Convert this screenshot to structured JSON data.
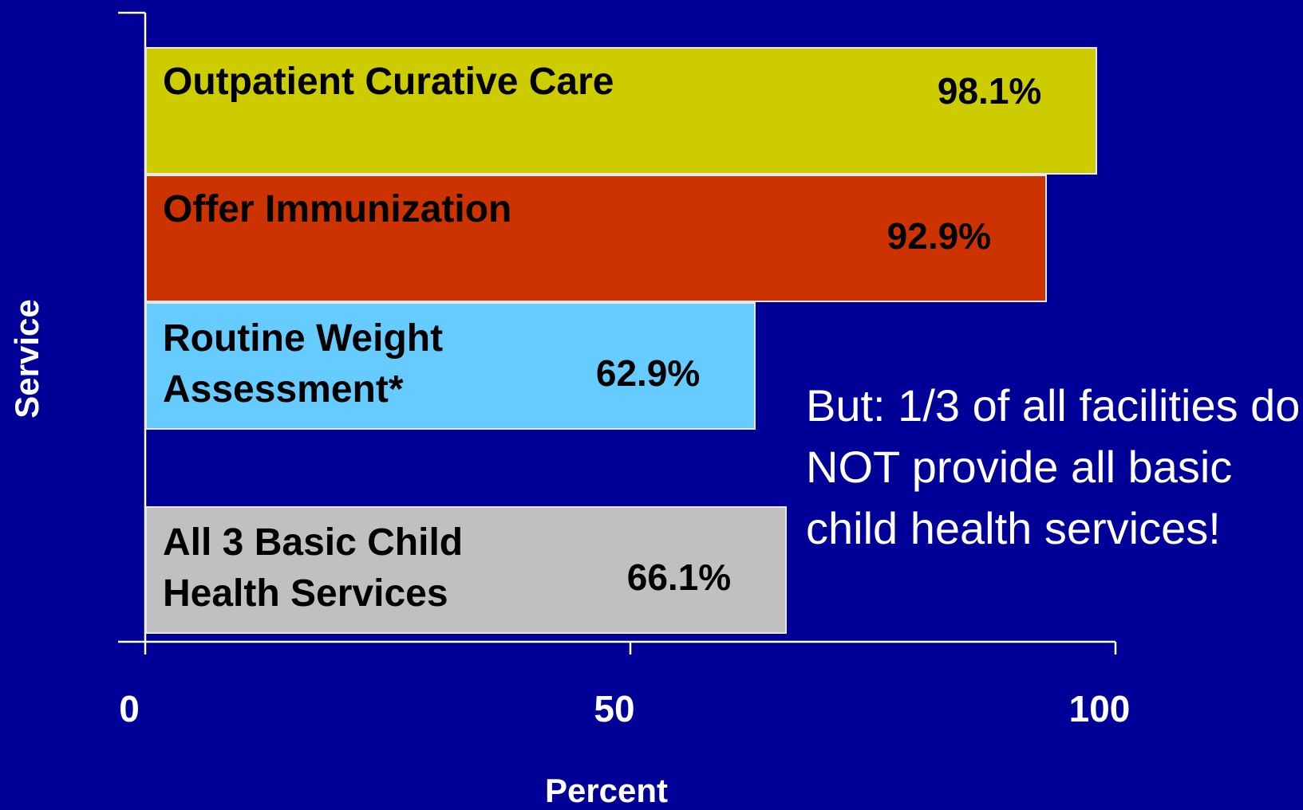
{
  "chart_data": {
    "type": "barh",
    "categories": [
      "Outpatient Curative Care",
      "Offer Immunization",
      "Routine Weight Assessment*",
      "All 3 Basic Child Health Services"
    ],
    "values": [
      98.1,
      92.9,
      62.9,
      66.1
    ],
    "value_labels": [
      "98.1%",
      "92.9%",
      "62.9%",
      "66.1%"
    ],
    "colors": [
      "#cccc00",
      "#cc3300",
      "#66ccff",
      "#c0c0c0"
    ],
    "xlim": [
      0,
      100
    ],
    "xticks": [
      0,
      50,
      100
    ],
    "xlabel": "Percent",
    "ylabel": "Service",
    "annotation": "But: 1/3 of all facilities do NOT provide all basic child health services!"
  }
}
